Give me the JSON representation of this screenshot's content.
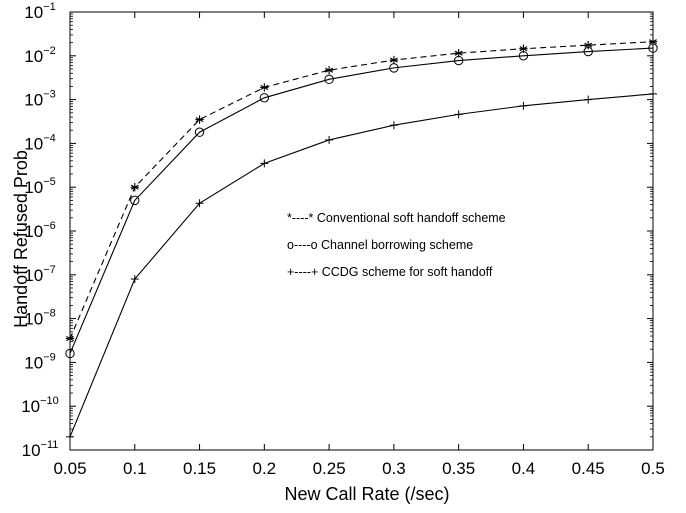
{
  "chart_data": {
    "type": "line",
    "title": "",
    "xlabel": "New Call Rate (/sec)",
    "ylabel": "Handoff Refused Prob",
    "x": [
      0.05,
      0.1,
      0.15,
      0.2,
      0.25,
      0.3,
      0.35,
      0.4,
      0.45,
      0.5
    ],
    "xlim": [
      0.05,
      0.5
    ],
    "ylim": [
      1e-11,
      0.1
    ],
    "yscale": "log",
    "x_tick_labels": [
      "0.05",
      "0.1",
      "0.15",
      "0.2",
      "0.25",
      "0.3",
      "0.35",
      "0.4",
      "0.45",
      "0.5"
    ],
    "y_ticks": [
      {
        "base": "10",
        "exp": "−11"
      },
      {
        "base": "10",
        "exp": "−10"
      },
      {
        "base": "10",
        "exp": "−9"
      },
      {
        "base": "10",
        "exp": "−8"
      },
      {
        "base": "10",
        "exp": "−7"
      },
      {
        "base": "10",
        "exp": "−6"
      },
      {
        "base": "10",
        "exp": "−5"
      },
      {
        "base": "10",
        "exp": "−4"
      },
      {
        "base": "10",
        "exp": "−3"
      },
      {
        "base": "10",
        "exp": "−2"
      },
      {
        "base": "10",
        "exp": "−1"
      }
    ],
    "grid": false,
    "legend_position": "center-right",
    "series": [
      {
        "name": "Conventional soft handoff scheme",
        "legend_label": "*----* Conventional soft handoff scheme",
        "marker": "asterisk",
        "line": "dashed",
        "color": "#000000",
        "values": [
          3.5e-09,
          1e-05,
          0.00035,
          0.0019,
          0.0047,
          0.008,
          0.0115,
          0.0145,
          0.0175,
          0.021
        ]
      },
      {
        "name": "Channel borrowing scheme",
        "legend_label": "o----o Channel borrowing scheme",
        "marker": "circle",
        "line": "solid",
        "color": "#000000",
        "values": [
          1.6e-09,
          5e-06,
          0.00018,
          0.0011,
          0.0029,
          0.0053,
          0.0078,
          0.01,
          0.0125,
          0.015
        ]
      },
      {
        "name": "CCDG scheme for soft handoff",
        "legend_label": "+----+ CCDG scheme for soft handoff",
        "marker": "plus",
        "line": "solid",
        "color": "#000000",
        "values": [
          2e-11,
          8e-08,
          4.3e-06,
          3.5e-05,
          0.00012,
          0.00026,
          0.00046,
          0.00072,
          0.001,
          0.00135
        ]
      }
    ]
  }
}
